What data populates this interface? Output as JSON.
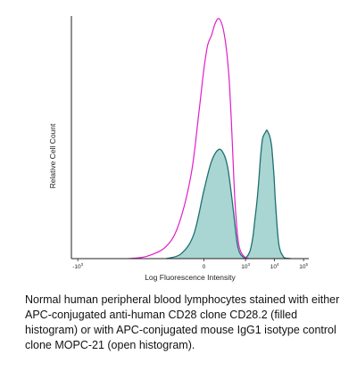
{
  "chart_data": {
    "type": "area",
    "title": "",
    "xlabel": "Log Fluorescence Intensity",
    "ylabel": "Relative Cell Count",
    "x_scale": "log",
    "xlim": [
      -1500,
      200000
    ],
    "ylim": [
      0,
      100
    ],
    "grid": false,
    "legend": "none",
    "x_ticks": [
      {
        "value": -1000,
        "base": "-10",
        "exp": "3"
      },
      {
        "value": 0,
        "base": "0",
        "exp": ""
      },
      {
        "value": 1000,
        "base": "10",
        "exp": "3"
      },
      {
        "value": 10000,
        "base": "10",
        "exp": "4"
      },
      {
        "value": 100000,
        "base": "10",
        "exp": "5"
      }
    ],
    "series": [
      {
        "style": "filled",
        "color": "#1f6f6f",
        "fill": "#a9d6d2",
        "x": [
          -300,
          -180,
          -80,
          0,
          60,
          120,
          180,
          240,
          300,
          380,
          450,
          520,
          600,
          700,
          800,
          900,
          1000,
          1150,
          1300,
          1500,
          1800,
          2100,
          2500,
          2900,
          3300,
          3800,
          4300,
          4800,
          5400,
          6000,
          6600,
          7300,
          8000,
          8800,
          9700,
          10500,
          11500,
          12500,
          14000,
          16000,
          18500,
          21000,
          25000,
          30000,
          36000
        ],
        "y": [
          0,
          2,
          10,
          28,
          40,
          45,
          43,
          38,
          30,
          20,
          12,
          6,
          3,
          1.5,
          0.8,
          0.3,
          0.3,
          1,
          2,
          4,
          9,
          16,
          24,
          33,
          42,
          49,
          51,
          52,
          53,
          52,
          51,
          49,
          46,
          40,
          33,
          25,
          18,
          12,
          6,
          3,
          1.5,
          0.5,
          0.2,
          0.1,
          0
        ]
      },
      {
        "style": "open",
        "color": "#e01ec8",
        "x": [
          -600,
          -450,
          -300,
          -200,
          -100,
          -40,
          0,
          30,
          60,
          90,
          120,
          160,
          200,
          240,
          280,
          330,
          380,
          430,
          500,
          580,
          680,
          800,
          1000,
          1300
        ],
        "y": [
          0,
          1,
          5,
          14,
          35,
          60,
          78,
          88,
          92,
          97,
          99,
          96,
          90,
          82,
          72,
          55,
          38,
          24,
          13,
          6,
          3,
          1.5,
          0.5,
          0
        ]
      }
    ]
  },
  "caption": "Normal human peripheral blood lymphocytes stained with either APC-conjugated anti-human CD28 clone CD28.2 (filled histogram) or with APC-conjugated mouse IgG1 isotype control clone MOPC-21 (open histogram)."
}
